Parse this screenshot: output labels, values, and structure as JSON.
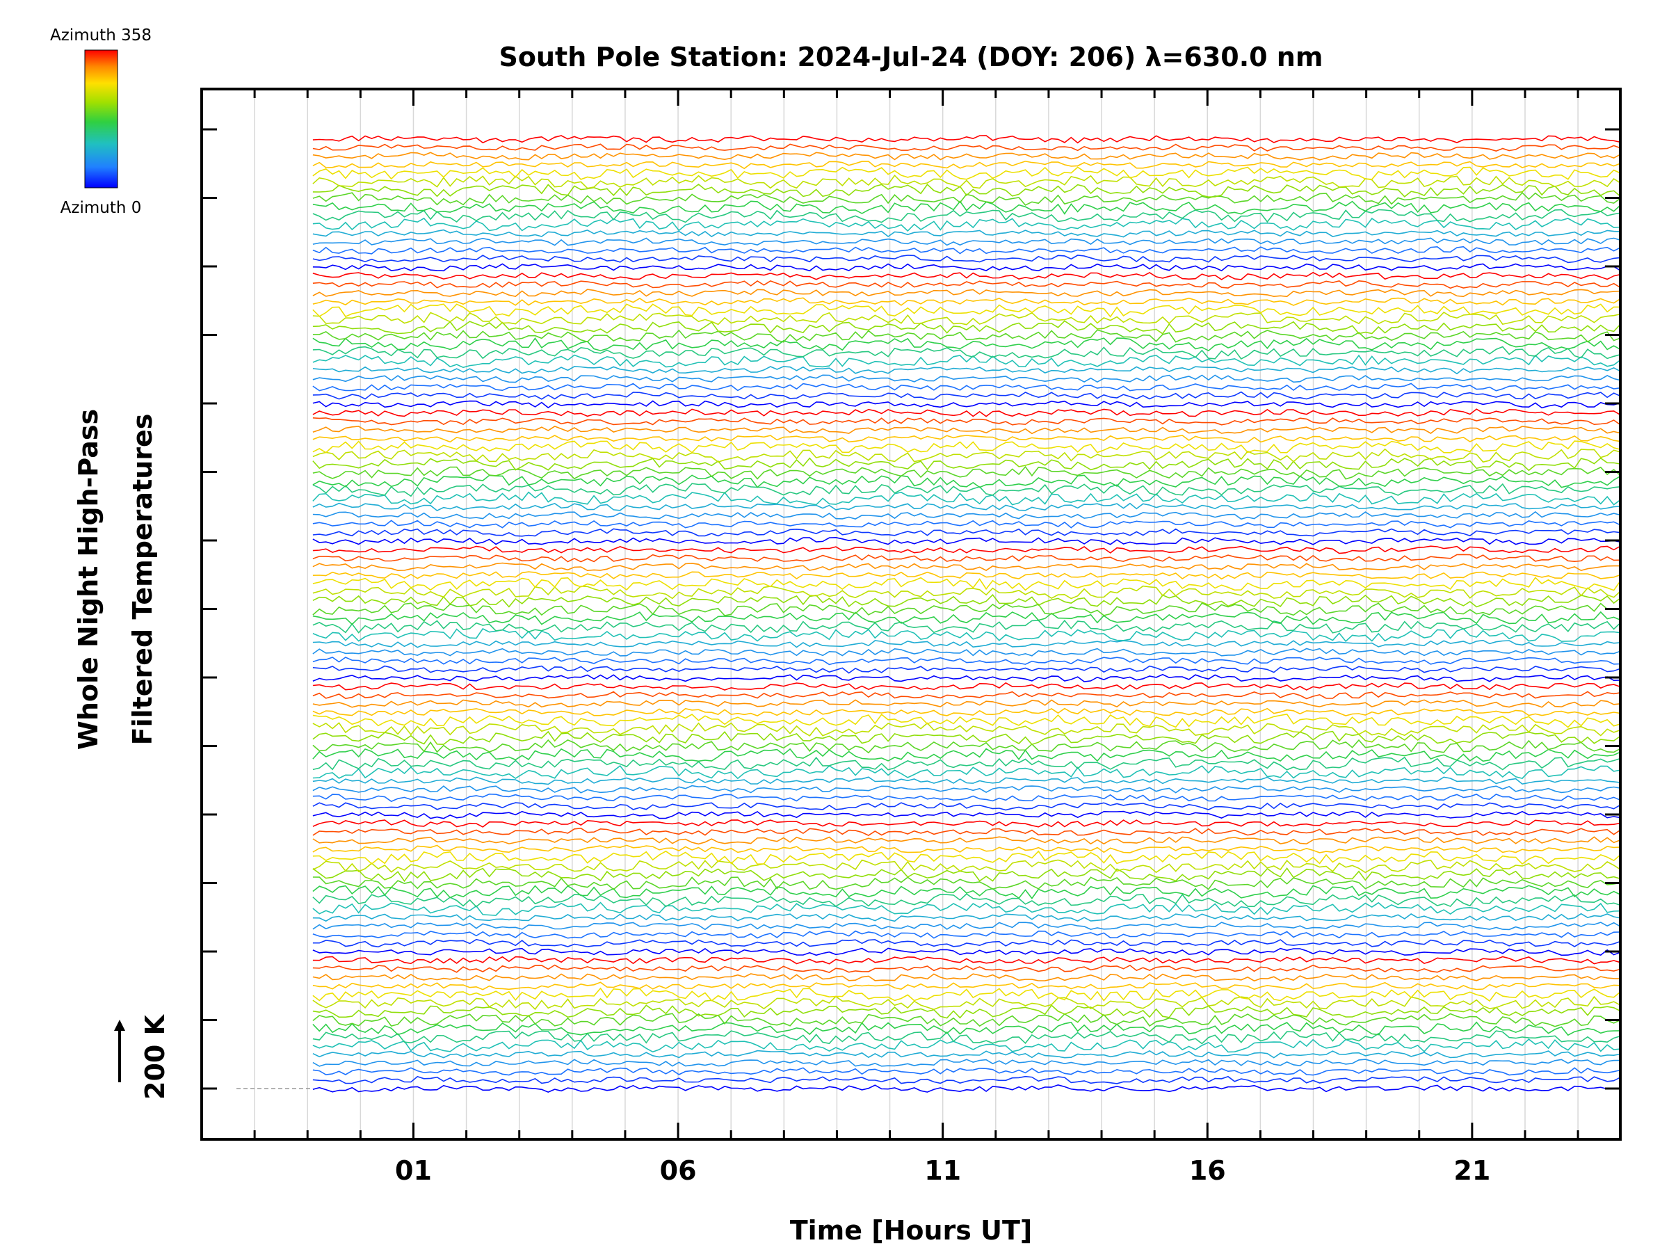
{
  "chart_data": {
    "type": "line",
    "title": "South Pole Station: 2024-Jul-24 (DOY: 206) λ=630.0 nm",
    "xlabel": "Time [Hours UT]",
    "ylabel_line1": "Whole Night High-Pass",
    "ylabel_line2": "Filtered Temperatures",
    "scale_label": "200 K",
    "xlim": [
      -3,
      23.8
    ],
    "x_ticks": [
      1,
      6,
      11,
      16,
      21
    ],
    "x_tick_labels": [
      "01",
      "06",
      "11",
      "16",
      "21"
    ],
    "data_start_hour": -0.9,
    "data_end_hour": 23.8,
    "colorbar": {
      "top_label": "Azimuth 358",
      "bottom_label": "Azimuth 0",
      "colors": [
        "#ff0000",
        "#ff8800",
        "#ffe000",
        "#a0e000",
        "#30d040",
        "#20c0c0",
        "#2080ff",
        "#0000ff"
      ]
    },
    "series_description": "Stacked high-pass filtered temperature traces for 112 look directions (7 groups of 16 azimuths), each colored by azimuth, offset vertically"
  }
}
